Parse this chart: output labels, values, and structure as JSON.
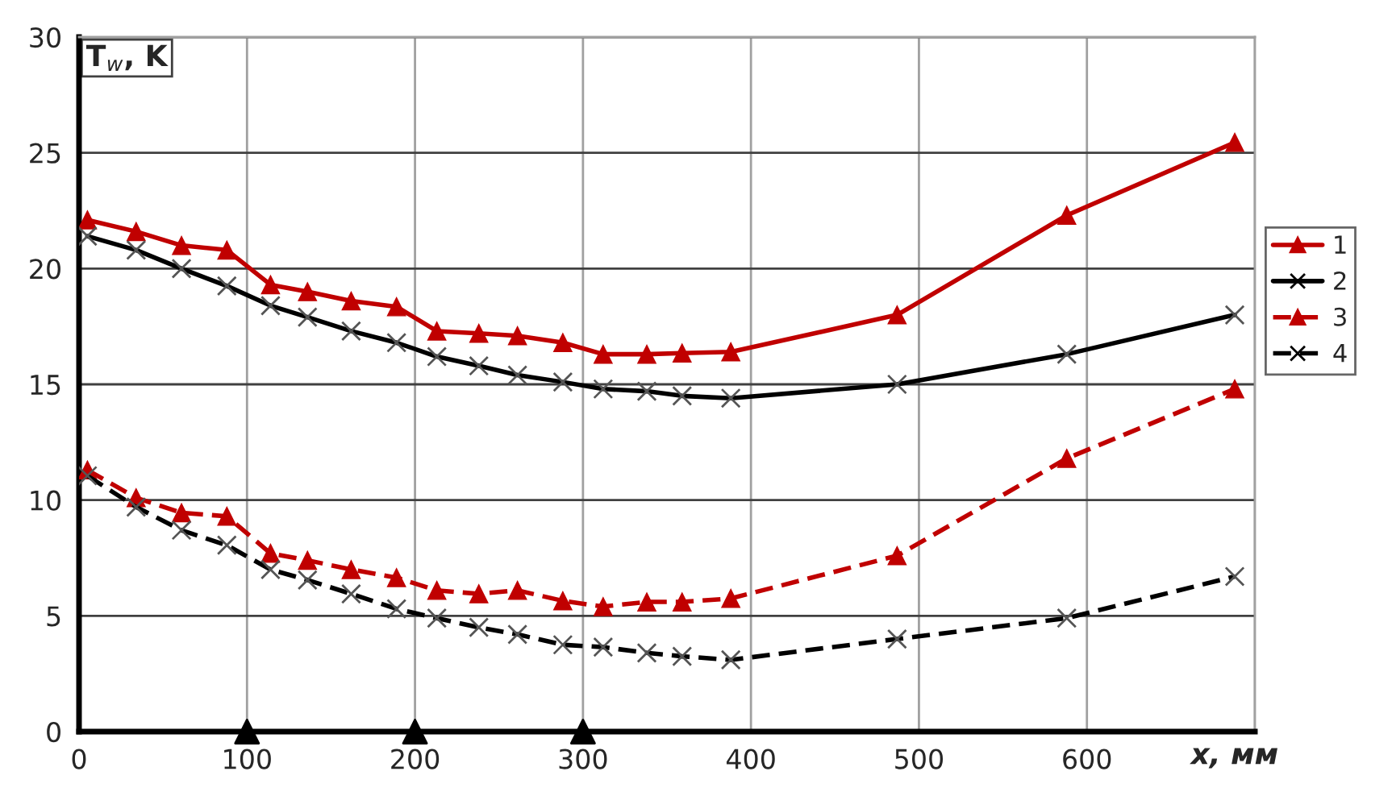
{
  "chart_data": {
    "type": "line",
    "xlabel": "x, мм",
    "ylabel": "T$_{w}$, K",
    "xlim": [
      0,
      700
    ],
    "xticks": [
      0,
      100,
      200,
      300,
      400,
      500,
      600,
      {
        "value": 700,
        "label": null
      }
    ],
    "ylim": [
      0,
      30
    ],
    "yticks": [
      0,
      5,
      10,
      15,
      20,
      25,
      30
    ],
    "grid": true,
    "legend": "right",
    "series": [
      {
        "name": "1",
        "color": "#c00000",
        "marker": "triangle",
        "line_style": "solid",
        "x": [
          5,
          34,
          61,
          88,
          114,
          136,
          162,
          189,
          213,
          238,
          261,
          288,
          312,
          338,
          359,
          388,
          487,
          588,
          688
        ],
        "values": [
          22.1,
          21.6,
          21.0,
          20.8,
          19.3,
          19.0,
          18.6,
          18.35,
          17.3,
          17.2,
          17.1,
          16.8,
          16.3,
          16.3,
          16.35,
          16.4,
          18.0,
          22.3,
          25.45
        ]
      },
      {
        "name": "2",
        "color": "#000000",
        "marker": "cross",
        "line_style": "solid",
        "x": [
          5,
          34,
          61,
          88,
          114,
          136,
          162,
          189,
          213,
          238,
          261,
          288,
          312,
          338,
          359,
          388,
          487,
          588,
          688
        ],
        "values": [
          21.4,
          20.8,
          20.0,
          19.25,
          18.4,
          17.9,
          17.3,
          16.8,
          16.2,
          15.8,
          15.4,
          15.1,
          14.8,
          14.7,
          14.5,
          14.4,
          15.0,
          16.3,
          18.0
        ]
      },
      {
        "name": "3",
        "color": "#c00000",
        "marker": "triangle",
        "line_style": "dashed",
        "x": [
          5,
          34,
          61,
          88,
          114,
          136,
          162,
          189,
          213,
          238,
          261,
          288,
          312,
          338,
          359,
          388,
          487,
          588,
          688
        ],
        "values": [
          11.3,
          10.1,
          9.45,
          9.3,
          7.7,
          7.4,
          7.0,
          6.65,
          6.1,
          5.95,
          6.1,
          5.65,
          5.4,
          5.6,
          5.6,
          5.75,
          7.6,
          11.8,
          14.8
        ]
      },
      {
        "name": "4",
        "color": "#000000",
        "marker": "cross",
        "line_style": "dashed",
        "x": [
          5,
          34,
          61,
          88,
          114,
          136,
          162,
          189,
          213,
          238,
          261,
          288,
          312,
          338,
          359,
          388,
          487,
          588,
          688
        ],
        "values": [
          11.05,
          9.7,
          8.7,
          8.05,
          7.0,
          6.55,
          5.95,
          5.3,
          4.9,
          4.5,
          4.2,
          3.75,
          3.65,
          3.4,
          3.25,
          3.1,
          4.0,
          4.9,
          6.7
        ]
      },
      {
        "type": "scatter",
        "color": "#000000",
        "marker": "triangle",
        "x": [
          100,
          200,
          300
        ],
        "values": [
          0,
          0,
          0
        ]
      }
    ]
  }
}
